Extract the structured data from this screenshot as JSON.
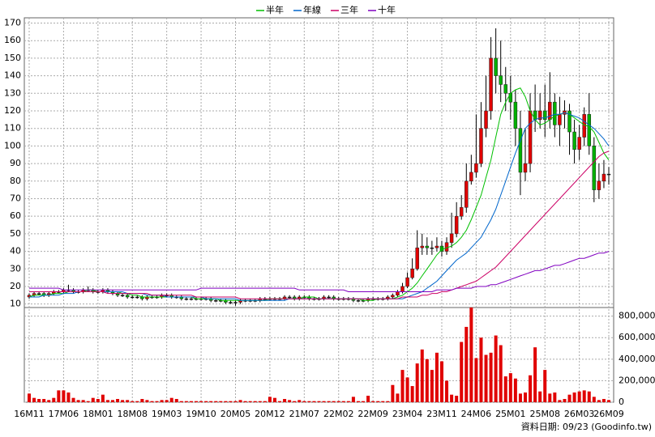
{
  "chart_data": {
    "type": "candlestick",
    "categories": [
      "16M11",
      null,
      null,
      null,
      null,
      null,
      null,
      "17M06",
      null,
      null,
      null,
      null,
      null,
      null,
      "18M01",
      null,
      null,
      null,
      null,
      null,
      null,
      "18M08",
      null,
      null,
      null,
      null,
      null,
      null,
      "19M03",
      null,
      null,
      null,
      null,
      null,
      null,
      "19M10",
      null,
      null,
      null,
      null,
      null,
      null,
      "20M05",
      null,
      null,
      null,
      null,
      null,
      null,
      "20M12",
      null,
      null,
      null,
      null,
      null,
      null,
      "21M07",
      null,
      null,
      null,
      null,
      null,
      null,
      "22M02",
      null,
      null,
      null,
      null,
      null,
      null,
      "22M09",
      null,
      null,
      null,
      null,
      null,
      null,
      "23M04",
      null,
      null,
      null,
      null,
      null,
      null,
      "23M11",
      null,
      null,
      null,
      null,
      null,
      null,
      "24M06",
      null,
      null,
      null,
      null,
      null,
      null,
      "25M01",
      null,
      null,
      null,
      null,
      null,
      null,
      "25M08",
      null,
      null,
      null,
      null,
      null,
      null,
      "26M03",
      null,
      null,
      null,
      null,
      null,
      "26M09"
    ],
    "open": [
      14,
      15,
      16,
      16,
      15,
      16,
      17,
      17,
      18,
      18,
      17,
      17,
      18,
      18,
      17,
      17,
      18,
      17,
      16,
      15,
      15,
      14,
      14,
      14,
      13,
      14,
      14,
      14,
      15,
      15,
      14,
      14,
      13,
      13,
      13,
      13,
      13,
      13,
      12,
      12,
      12,
      11,
      11,
      11,
      12,
      12,
      12,
      12,
      13,
      13,
      13,
      13,
      13,
      14,
      14,
      13,
      14,
      14,
      13,
      13,
      13,
      14,
      14,
      13,
      13,
      13,
      13,
      12,
      12,
      12,
      13,
      13,
      13,
      13,
      14,
      15,
      17,
      20,
      25,
      30,
      42,
      43,
      42,
      42,
      43,
      40,
      45,
      50,
      60,
      65,
      80,
      85,
      90,
      110,
      120,
      150,
      140,
      135,
      130,
      125,
      110,
      85,
      90,
      120,
      115,
      120,
      115,
      125,
      112,
      118,
      120,
      108,
      98,
      105,
      118,
      100,
      75,
      80,
      84
    ],
    "high": [
      16,
      17,
      17,
      17,
      17,
      18,
      18,
      19,
      21,
      19,
      18,
      19,
      20,
      19,
      18,
      19,
      19,
      18,
      17,
      16,
      16,
      15,
      15,
      15,
      15,
      15,
      15,
      16,
      16,
      16,
      15,
      15,
      14,
      14,
      14,
      14,
      14,
      14,
      13,
      13,
      13,
      12,
      12,
      13,
      13,
      13,
      13,
      14,
      14,
      14,
      14,
      14,
      15,
      15,
      15,
      15,
      15,
      15,
      14,
      14,
      15,
      15,
      15,
      14,
      14,
      14,
      14,
      13,
      13,
      14,
      14,
      14,
      14,
      15,
      16,
      18,
      22,
      28,
      36,
      52,
      50,
      48,
      46,
      48,
      46,
      48,
      62,
      68,
      72,
      90,
      95,
      118,
      125,
      140,
      162,
      167,
      160,
      145,
      140,
      132,
      120,
      110,
      130,
      135,
      130,
      135,
      142,
      130,
      128,
      126,
      124,
      115,
      112,
      122,
      130,
      105,
      90,
      92,
      88
    ],
    "low": [
      13,
      14,
      15,
      14,
      14,
      15,
      16,
      16,
      17,
      16,
      16,
      16,
      17,
      16,
      16,
      16,
      16,
      15,
      14,
      14,
      13,
      13,
      13,
      12,
      12,
      13,
      13,
      13,
      14,
      13,
      13,
      12,
      12,
      12,
      12,
      12,
      12,
      11,
      11,
      11,
      10,
      10,
      9,
      10,
      11,
      11,
      11,
      11,
      12,
      12,
      12,
      12,
      12,
      13,
      12,
      12,
      13,
      12,
      12,
      12,
      12,
      13,
      12,
      12,
      12,
      12,
      11,
      11,
      11,
      11,
      12,
      12,
      12,
      12,
      13,
      14,
      16,
      19,
      24,
      29,
      38,
      38,
      38,
      40,
      37,
      38,
      42,
      48,
      58,
      62,
      78,
      82,
      88,
      105,
      115,
      130,
      125,
      120,
      115,
      100,
      72,
      80,
      85,
      108,
      110,
      105,
      110,
      105,
      100,
      110,
      95,
      90,
      92,
      100,
      95,
      68,
      70,
      76,
      78
    ],
    "close": [
      15,
      16,
      16,
      15,
      16,
      17,
      17,
      18,
      18,
      17,
      17,
      18,
      18,
      17,
      17,
      18,
      17,
      16,
      15,
      15,
      14,
      14,
      14,
      13,
      14,
      14,
      14,
      15,
      15,
      14,
      14,
      13,
      13,
      13,
      13,
      13,
      13,
      12,
      12,
      12,
      11,
      11,
      11,
      12,
      12,
      12,
      12,
      13,
      13,
      13,
      13,
      13,
      14,
      14,
      13,
      14,
      14,
      13,
      13,
      13,
      14,
      14,
      13,
      13,
      13,
      13,
      12,
      12,
      12,
      13,
      13,
      13,
      13,
      14,
      15,
      17,
      20,
      25,
      30,
      42,
      43,
      42,
      42,
      43,
      40,
      45,
      50,
      60,
      65,
      80,
      85,
      90,
      110,
      120,
      150,
      140,
      135,
      130,
      125,
      110,
      85,
      90,
      120,
      115,
      120,
      115,
      125,
      112,
      118,
      120,
      108,
      98,
      105,
      118,
      100,
      75,
      80,
      84,
      84
    ],
    "up_color": "#e00000",
    "down_color": "#00b000",
    "ylim": [
      8,
      173
    ],
    "yticks": [
      10,
      20,
      30,
      40,
      50,
      60,
      70,
      80,
      90,
      100,
      110,
      120,
      130,
      140,
      150,
      160,
      170
    ],
    "grid": true,
    "series": [
      {
        "name": "半年",
        "color": "#00c000",
        "values": [
          14,
          15,
          15,
          15,
          15,
          16,
          16,
          16,
          17,
          17,
          17,
          17,
          18,
          18,
          17,
          17,
          17,
          17,
          17,
          16,
          16,
          15,
          15,
          14,
          14,
          14,
          14,
          14,
          14,
          14,
          14,
          14,
          14,
          14,
          13,
          13,
          13,
          13,
          13,
          12,
          12,
          12,
          12,
          12,
          12,
          12,
          12,
          12,
          12,
          13,
          13,
          13,
          13,
          13,
          13,
          13,
          14,
          14,
          14,
          13,
          13,
          13,
          13,
          13,
          13,
          13,
          13,
          13,
          12,
          12,
          12,
          13,
          13,
          13,
          13,
          14,
          15,
          17,
          19,
          22,
          26,
          30,
          34,
          38,
          41,
          42,
          43,
          45,
          48,
          52,
          58,
          65,
          72,
          82,
          92,
          105,
          118,
          125,
          130,
          132,
          133,
          128,
          120,
          115,
          112,
          113,
          115,
          117,
          118,
          119,
          118,
          116,
          114,
          112,
          111,
          108,
          102,
          96,
          92
        ]
      },
      {
        "name": "年線",
        "color": "#0066cc",
        "values": [
          14,
          14,
          14,
          15,
          15,
          15,
          15,
          16,
          16,
          16,
          17,
          17,
          17,
          17,
          17,
          17,
          17,
          17,
          17,
          17,
          16,
          16,
          16,
          16,
          15,
          15,
          15,
          15,
          14,
          14,
          14,
          14,
          14,
          14,
          14,
          14,
          13,
          13,
          13,
          13,
          13,
          13,
          13,
          12,
          12,
          12,
          12,
          12,
          12,
          12,
          12,
          12,
          12,
          13,
          13,
          13,
          13,
          13,
          13,
          13,
          13,
          13,
          13,
          13,
          13,
          13,
          13,
          13,
          13,
          13,
          13,
          13,
          13,
          13,
          13,
          13,
          13,
          14,
          15,
          16,
          17,
          19,
          21,
          23,
          26,
          29,
          32,
          35,
          37,
          39,
          42,
          45,
          48,
          53,
          58,
          64,
          72,
          80,
          88,
          96,
          103,
          110,
          113,
          115,
          116,
          116,
          117,
          118,
          118,
          119,
          118,
          117,
          116,
          114,
          112,
          110,
          107,
          104,
          100
        ]
      },
      {
        "name": "三年",
        "color": "#cc0066",
        "values": [
          17,
          17,
          17,
          17,
          17,
          17,
          17,
          17,
          17,
          17,
          17,
          17,
          17,
          17,
          17,
          17,
          16,
          16,
          16,
          16,
          16,
          16,
          16,
          16,
          16,
          15,
          15,
          15,
          15,
          15,
          15,
          15,
          15,
          15,
          14,
          14,
          14,
          14,
          14,
          14,
          14,
          14,
          14,
          13,
          13,
          13,
          13,
          13,
          13,
          13,
          13,
          13,
          13,
          13,
          13,
          13,
          13,
          13,
          13,
          13,
          13,
          13,
          13,
          13,
          13,
          13,
          13,
          13,
          13,
          13,
          13,
          13,
          13,
          13,
          13,
          13,
          14,
          14,
          14,
          14,
          15,
          15,
          16,
          16,
          17,
          17,
          18,
          19,
          20,
          21,
          22,
          23,
          25,
          27,
          29,
          31,
          34,
          37,
          40,
          43,
          46,
          49,
          52,
          55,
          58,
          61,
          64,
          67,
          70,
          73,
          76,
          79,
          82,
          85,
          88,
          91,
          94,
          96,
          97
        ]
      },
      {
        "name": "十年",
        "color": "#8000c0",
        "values": [
          19,
          19,
          19,
          19,
          19,
          19,
          19,
          18,
          18,
          18,
          18,
          18,
          18,
          18,
          18,
          18,
          18,
          18,
          18,
          18,
          18,
          18,
          18,
          18,
          18,
          18,
          18,
          18,
          18,
          18,
          18,
          18,
          18,
          18,
          18,
          19,
          19,
          19,
          19,
          19,
          19,
          19,
          19,
          19,
          19,
          19,
          19,
          19,
          19,
          19,
          19,
          19,
          19,
          19,
          19,
          18,
          18,
          18,
          18,
          18,
          18,
          18,
          18,
          18,
          18,
          17,
          17,
          17,
          17,
          17,
          17,
          17,
          17,
          17,
          17,
          17,
          17,
          17,
          17,
          17,
          17,
          17,
          17,
          18,
          18,
          18,
          18,
          19,
          19,
          19,
          19,
          20,
          20,
          20,
          21,
          21,
          22,
          23,
          24,
          25,
          26,
          27,
          28,
          29,
          29,
          30,
          31,
          32,
          32,
          33,
          34,
          35,
          36,
          36,
          37,
          38,
          39,
          39,
          40
        ]
      }
    ],
    "volume": {
      "color": "#e00000",
      "values": [
        80000,
        40000,
        30000,
        30000,
        20000,
        40000,
        110000,
        110000,
        90000,
        40000,
        20000,
        20000,
        10000,
        40000,
        30000,
        70000,
        20000,
        20000,
        30000,
        20000,
        20000,
        10000,
        10000,
        30000,
        20000,
        10000,
        10000,
        20000,
        20000,
        40000,
        30000,
        10000,
        10000,
        10000,
        10000,
        10000,
        10000,
        10000,
        10000,
        10000,
        10000,
        10000,
        10000,
        20000,
        10000,
        10000,
        10000,
        10000,
        10000,
        50000,
        40000,
        10000,
        30000,
        20000,
        10000,
        20000,
        10000,
        10000,
        10000,
        10000,
        10000,
        10000,
        10000,
        10000,
        10000,
        10000,
        50000,
        10000,
        10000,
        60000,
        10000,
        10000,
        10000,
        10000,
        160000,
        80000,
        300000,
        230000,
        150000,
        360000,
        490000,
        400000,
        300000,
        460000,
        380000,
        200000,
        70000,
        60000,
        560000,
        700000,
        880000,
        410000,
        600000,
        440000,
        460000,
        620000,
        530000,
        240000,
        270000,
        220000,
        80000,
        90000,
        250000,
        510000,
        100000,
        300000,
        80000,
        90000,
        20000,
        30000,
        70000,
        90000,
        100000,
        110000,
        100000,
        50000,
        20000,
        30000,
        20000
      ],
      "ylim": [
        0,
        880000
      ],
      "yticks": [
        0,
        {
          "value": 200000,
          "label": "200,000"
        },
        {
          "value": 400000,
          "label": "400,000"
        },
        {
          "value": 600000,
          "label": "600,000"
        },
        {
          "value": 800000,
          "label": "800,000"
        }
      ]
    },
    "footer": "資料日期: 09/23 (Goodinfo.tw)"
  }
}
